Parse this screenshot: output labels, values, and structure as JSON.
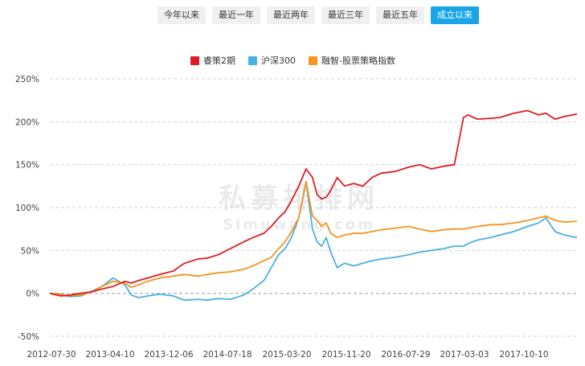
{
  "range_buttons": [
    {
      "label": "今年以来",
      "active": false
    },
    {
      "label": "最近一年",
      "active": false
    },
    {
      "label": "最近两年",
      "active": false
    },
    {
      "label": "最近三年",
      "active": false
    },
    {
      "label": "最近五年",
      "active": false
    },
    {
      "label": "成立以来",
      "active": true
    }
  ],
  "watermark": {
    "cn": "私募排排网",
    "en": "Simuwang.com"
  },
  "colors": {
    "series1": "#dd1d23",
    "series2": "#4ab0e2",
    "series3": "#f7931e",
    "grid": "#d6d6d6",
    "zero_line": "#aaaaaa"
  },
  "chart_data": {
    "type": "line",
    "title": "",
    "xlabel": "",
    "ylabel": "",
    "y_unit": "%",
    "ylim": [
      -50,
      250
    ],
    "y_ticks": [
      -50,
      0,
      50,
      100,
      150,
      200,
      250
    ],
    "y_tick_labels": [
      "-50%",
      "0%",
      "50%",
      "100%",
      "150%",
      "200%",
      "250%"
    ],
    "x_tick_labels": [
      "2012-07-30",
      "2013-04-10",
      "2013-12-06",
      "2014-07-18",
      "2015-03-20",
      "2015-11-20",
      "2016-07-29",
      "2017-03-03",
      "2017-10-10"
    ],
    "x_range": [
      2012.58,
      2018.34
    ],
    "grid": "horizontal-dashed",
    "legend_position": "top",
    "x": [
      2012.58,
      2012.7,
      2012.8,
      2012.92,
      2013.05,
      2013.15,
      2013.27,
      2013.4,
      2013.47,
      2013.55,
      2013.65,
      2013.78,
      2013.93,
      2014.05,
      2014.2,
      2014.3,
      2014.42,
      2014.55,
      2014.7,
      2014.8,
      2014.92,
      2015.0,
      2015.08,
      2015.15,
      2015.22,
      2015.3,
      2015.38,
      2015.45,
      2015.5,
      2015.55,
      2015.6,
      2015.65,
      2015.72,
      2015.8,
      2015.9,
      2016.0,
      2016.1,
      2016.2,
      2016.35,
      2016.5,
      2016.62,
      2016.75,
      2016.88,
      2017.0,
      2017.1,
      2017.15,
      2017.25,
      2017.4,
      2017.5,
      2017.65,
      2017.8,
      2017.92,
      2018.0,
      2018.1,
      2018.2,
      2018.34
    ],
    "series": [
      {
        "name": "睿策2期",
        "values": [
          0,
          -3,
          -2,
          0,
          2,
          5,
          8,
          14,
          12,
          15,
          18,
          22,
          26,
          35,
          40,
          41,
          45,
          52,
          60,
          65,
          70,
          78,
          88,
          95,
          108,
          125,
          145,
          135,
          115,
          110,
          112,
          120,
          135,
          125,
          128,
          125,
          135,
          140,
          142,
          147,
          150,
          145,
          148,
          150,
          205,
          208,
          203,
          204,
          205,
          210,
          213,
          208,
          210,
          203,
          206,
          209
        ]
      },
      {
        "name": "沪深300",
        "values": [
          0,
          -2,
          -4,
          -3,
          3,
          8,
          18,
          10,
          -2,
          -5,
          -3,
          -1,
          -3,
          -8,
          -7,
          -8,
          -6,
          -7,
          -2,
          5,
          15,
          30,
          45,
          52,
          65,
          88,
          130,
          75,
          60,
          55,
          65,
          48,
          30,
          35,
          32,
          35,
          38,
          40,
          42,
          45,
          48,
          50,
          52,
          55,
          55,
          58,
          62,
          65,
          68,
          72,
          78,
          82,
          88,
          72,
          68,
          65
        ]
      },
      {
        "name": "融智-股票策略指数",
        "values": [
          0,
          -1,
          -3,
          -2,
          2,
          8,
          14,
          12,
          7,
          10,
          14,
          18,
          20,
          22,
          20,
          22,
          24,
          25,
          28,
          32,
          38,
          42,
          52,
          60,
          72,
          88,
          130,
          90,
          85,
          78,
          82,
          70,
          65,
          68,
          70,
          70,
          72,
          74,
          76,
          78,
          75,
          72,
          74,
          75,
          75,
          76,
          78,
          80,
          80,
          82,
          85,
          88,
          90,
          85,
          83,
          84
        ]
      }
    ]
  }
}
